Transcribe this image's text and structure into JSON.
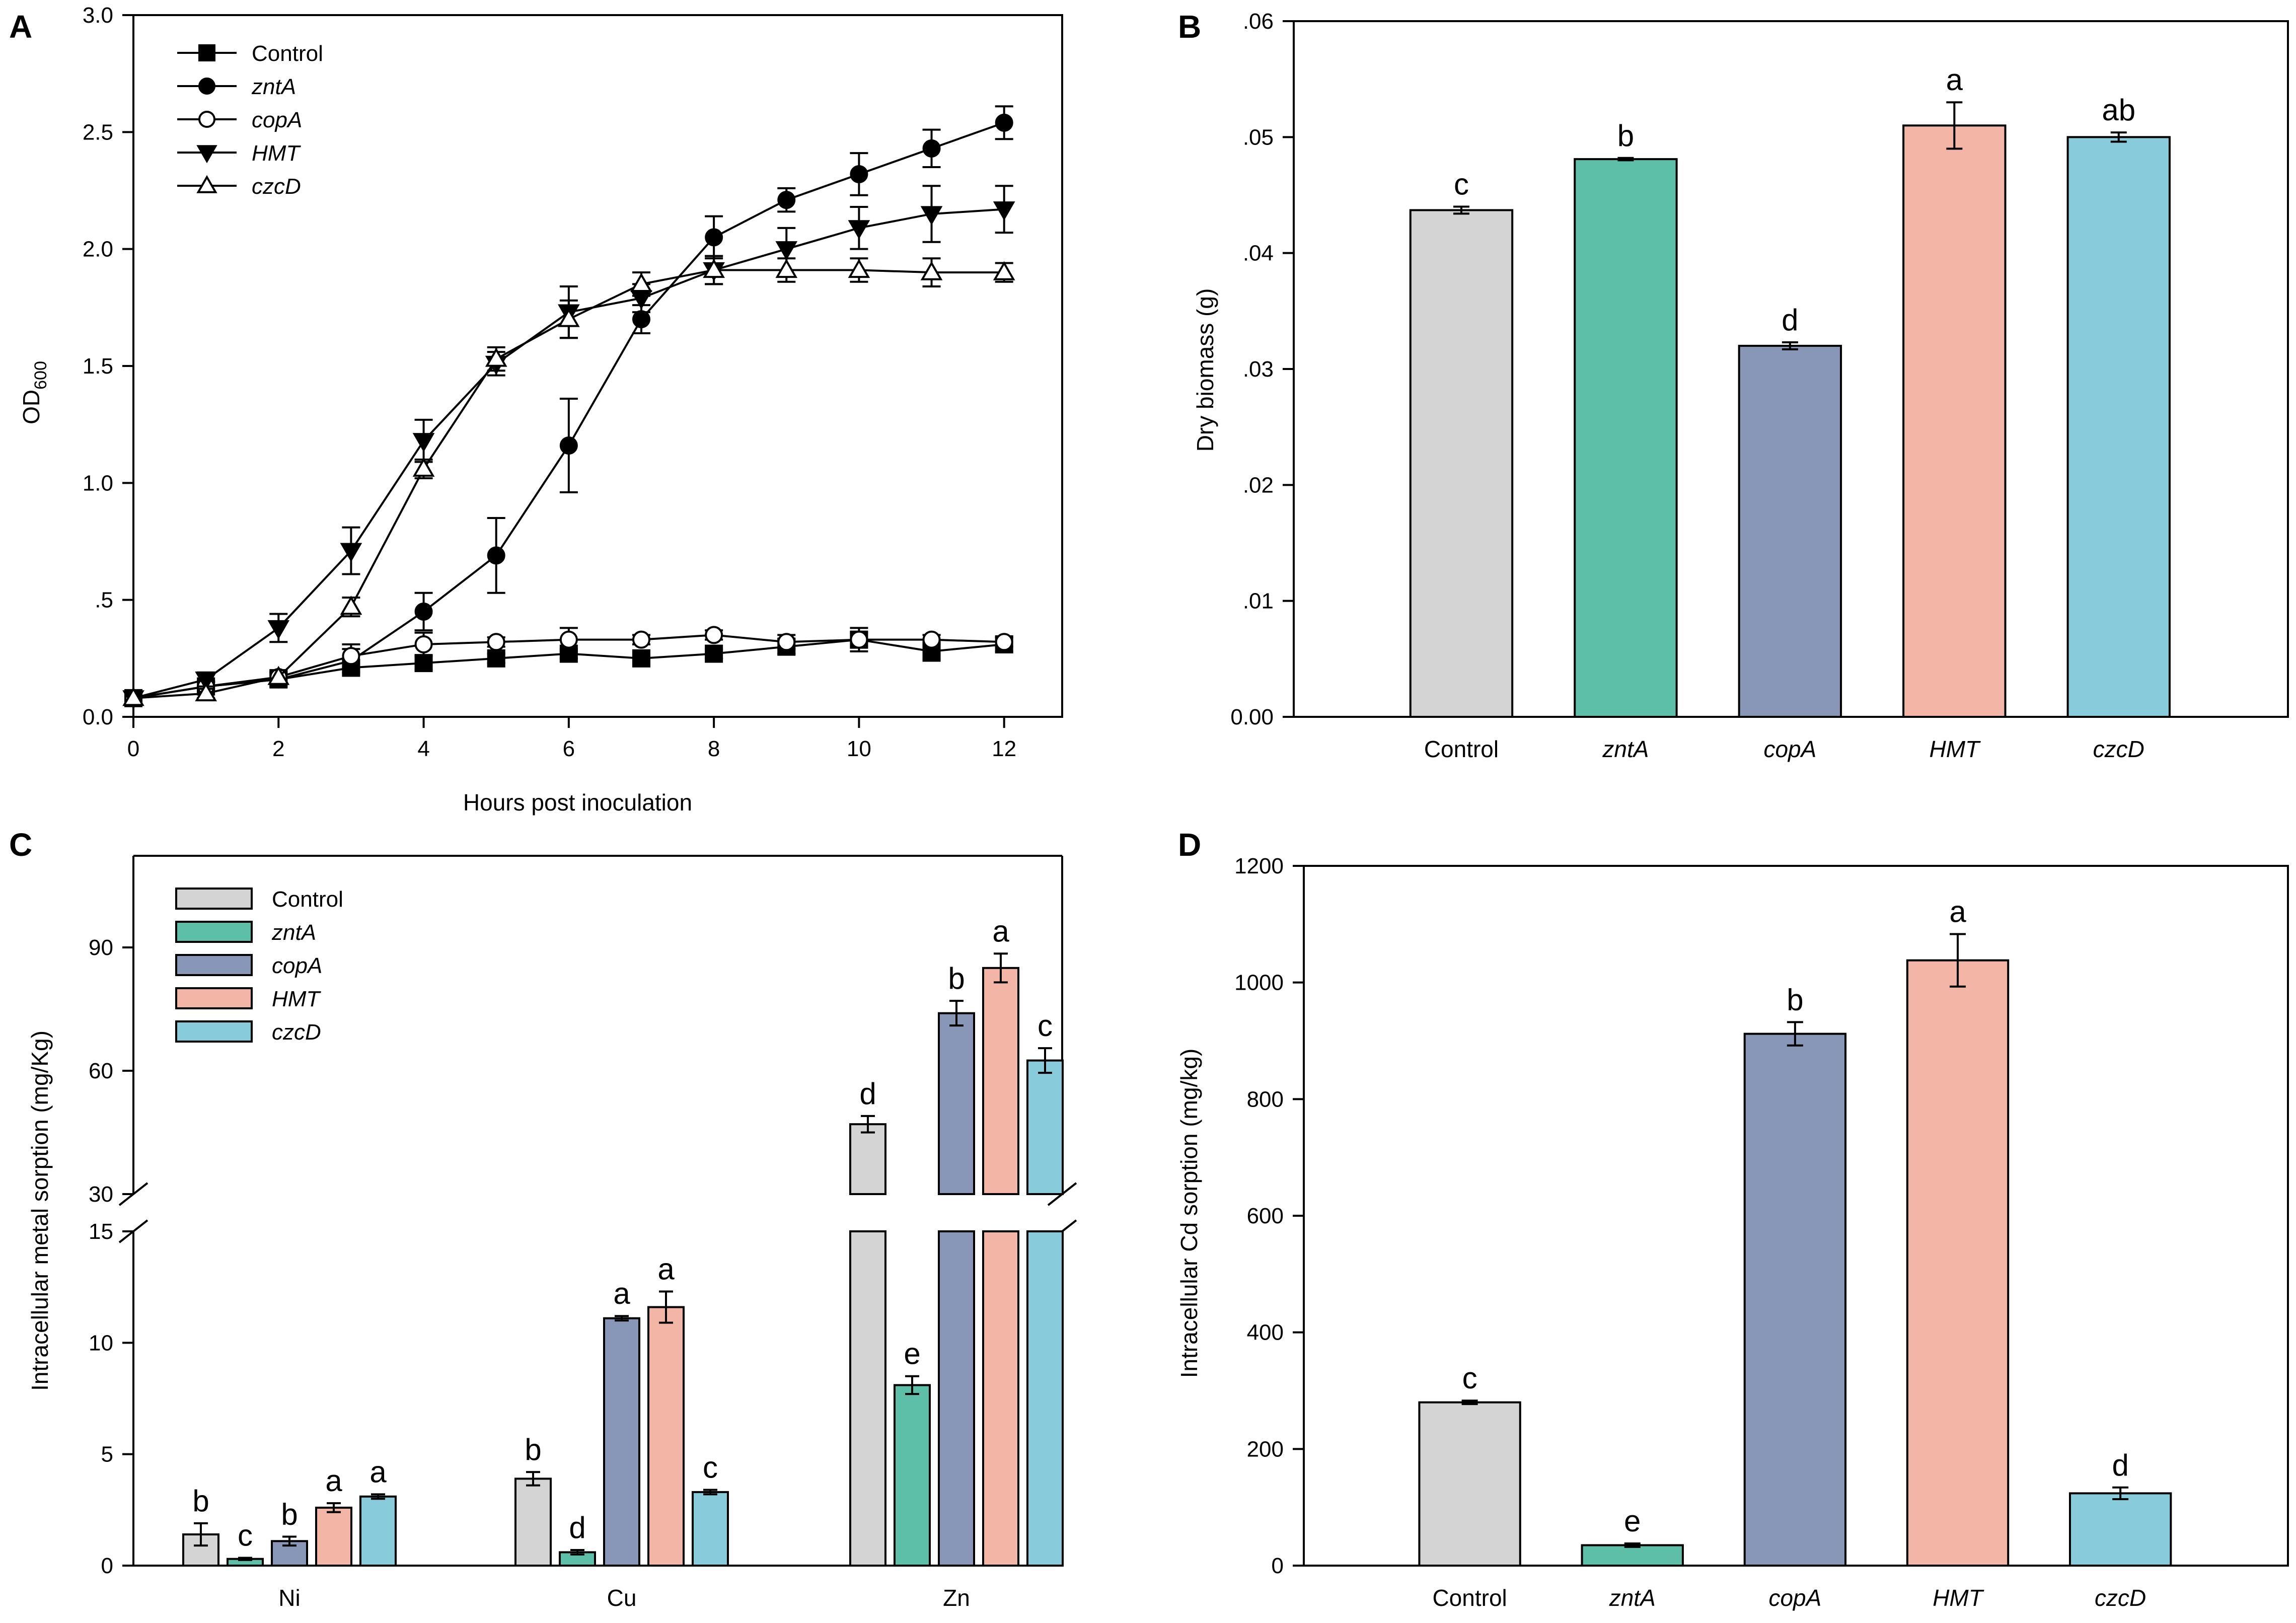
{
  "chart_data": [
    {
      "panel": "A",
      "type": "line",
      "xlabel": "Hours post inoculation",
      "ylabel": "OD",
      "ylabel_sub": "600",
      "xlim": [
        0,
        12.8
      ],
      "ylim": [
        0,
        3.0
      ],
      "xticks": [
        "0",
        "2",
        "4",
        "6",
        "8",
        "10",
        "12"
      ],
      "yticks": [
        "0.0",
        ".5",
        "1.0",
        "1.5",
        "2.0",
        "2.5",
        "3.0"
      ],
      "series": [
        {
          "name": "Control",
          "marker": "square-filled",
          "x": [
            0,
            1,
            2,
            3,
            4,
            5,
            6,
            7,
            8,
            9,
            10,
            11,
            12
          ],
          "y": [
            0.08,
            0.13,
            0.16,
            0.21,
            0.23,
            0.25,
            0.27,
            0.25,
            0.27,
            0.3,
            0.33,
            0.28,
            0.31
          ],
          "err": [
            0.02,
            0.02,
            0.02,
            0.02,
            0.03,
            0.02,
            0.02,
            0.02,
            0.02,
            0.03,
            0.05,
            0.04,
            0.03
          ]
        },
        {
          "name": "zntA",
          "marker": "circle-filled",
          "x": [
            0,
            1,
            2,
            3,
            4,
            5,
            6,
            7,
            8,
            9,
            10,
            11,
            12
          ],
          "y": [
            0.08,
            0.13,
            0.16,
            0.24,
            0.45,
            0.69,
            1.16,
            1.7,
            2.05,
            2.21,
            2.32,
            2.43,
            2.54
          ],
          "err": [
            0.02,
            0.02,
            0.03,
            0.05,
            0.08,
            0.16,
            0.2,
            0.06,
            0.09,
            0.05,
            0.09,
            0.08,
            0.07
          ]
        },
        {
          "name": "copA",
          "marker": "circle-open",
          "x": [
            0,
            1,
            2,
            3,
            4,
            5,
            6,
            7,
            8,
            9,
            10,
            11,
            12
          ],
          "y": [
            0.08,
            0.13,
            0.17,
            0.26,
            0.31,
            0.32,
            0.33,
            0.33,
            0.35,
            0.32,
            0.33,
            0.33,
            0.32
          ],
          "err": [
            0.02,
            0.02,
            0.02,
            0.05,
            0.05,
            0.02,
            0.05,
            0.02,
            0.02,
            0.03,
            0.03,
            0.02,
            0.02
          ]
        },
        {
          "name": "HMT",
          "marker": "triangle-down-filled",
          "x": [
            0,
            1,
            2,
            3,
            4,
            5,
            6,
            7,
            8,
            9,
            10,
            11,
            12
          ],
          "y": [
            0.08,
            0.16,
            0.38,
            0.71,
            1.18,
            1.51,
            1.73,
            1.79,
            1.91,
            2.0,
            2.09,
            2.15,
            2.17
          ],
          "err": [
            0.02,
            0.03,
            0.06,
            0.1,
            0.09,
            0.05,
            0.11,
            0.06,
            0.06,
            0.09,
            0.09,
            0.12,
            0.1
          ]
        },
        {
          "name": "czcD",
          "marker": "triangle-up-open",
          "x": [
            0,
            1,
            2,
            3,
            4,
            5,
            6,
            7,
            8,
            9,
            10,
            11,
            12
          ],
          "y": [
            0.08,
            0.1,
            0.17,
            0.47,
            1.06,
            1.53,
            1.7,
            1.85,
            1.91,
            1.91,
            1.91,
            1.9,
            1.9
          ],
          "err": [
            0.02,
            0.02,
            0.03,
            0.04,
            0.04,
            0.05,
            0.08,
            0.05,
            0.06,
            0.05,
            0.05,
            0.06,
            0.04
          ]
        }
      ]
    },
    {
      "panel": "B",
      "type": "bar",
      "ylabel": "Dry biomass (g)",
      "ylim": [
        0,
        0.06
      ],
      "yticks": [
        "0.00",
        ".01",
        ".02",
        ".03",
        ".04",
        ".05",
        ".06"
      ],
      "categories": [
        "Control",
        "zntA",
        "copA",
        "HMT",
        "czcD"
      ],
      "values": [
        0.0437,
        0.0481,
        0.032,
        0.051,
        0.05
      ],
      "err": [
        0.0003,
        0.0001,
        0.0003,
        0.002,
        0.0004
      ],
      "labels": [
        "c",
        "b",
        "d",
        "a",
        "ab"
      ]
    },
    {
      "panel": "C",
      "type": "bar",
      "ylabel": "Intracellular metal sorption (mg/Kg)",
      "axis_break": {
        "lower": [
          0,
          15
        ],
        "upper": [
          30,
          90
        ]
      },
      "yticks_lower": [
        "0",
        "5",
        "10",
        "15"
      ],
      "yticks_upper": [
        "30",
        "60",
        "90"
      ],
      "categories": [
        "Ni",
        "Cu",
        "Zn"
      ],
      "series": [
        {
          "name": "Control",
          "values": [
            1.4,
            3.9,
            47.0
          ],
          "err": [
            0.5,
            0.3,
            2.0
          ],
          "labels": [
            "b",
            "b",
            "d"
          ]
        },
        {
          "name": "zntA",
          "values": [
            0.3,
            0.6,
            8.1
          ],
          "err": [
            0.05,
            0.1,
            0.4
          ],
          "labels": [
            "c",
            "d",
            "e"
          ]
        },
        {
          "name": "copA",
          "values": [
            1.1,
            11.1,
            74.0
          ],
          "err": [
            0.2,
            0.1,
            3.0
          ],
          "labels": [
            "b",
            "a",
            "b"
          ]
        },
        {
          "name": "HMT",
          "values": [
            2.6,
            11.6,
            85.0
          ],
          "err": [
            0.2,
            0.7,
            3.5
          ],
          "labels": [
            "a",
            "a",
            "a"
          ]
        },
        {
          "name": "czcD",
          "values": [
            3.1,
            3.3,
            62.5
          ],
          "err": [
            0.1,
            0.1,
            3.0
          ],
          "labels": [
            "a",
            "c",
            "c"
          ]
        }
      ]
    },
    {
      "panel": "D",
      "type": "bar",
      "ylabel": "Intracellular Cd sorption (mg/kg)",
      "ylim": [
        0,
        1200
      ],
      "yticks": [
        "0",
        "200",
        "400",
        "600",
        "800",
        "1000",
        "1200"
      ],
      "categories": [
        "Control",
        "zntA",
        "copA",
        "HMT",
        "czcD"
      ],
      "values": [
        280,
        35,
        912,
        1038,
        124
      ],
      "err": [
        3,
        3,
        20,
        45,
        10
      ],
      "labels": [
        "c",
        "e",
        "b",
        "a",
        "d"
      ]
    }
  ],
  "legend": [
    "Control",
    "zntA",
    "copA",
    "HMT",
    "czcD"
  ],
  "colors": {
    "Control": "#d4d4d4",
    "zntA": "#5ebfa8",
    "copA": "#8896b7",
    "HMT": "#f2b5a6",
    "czcD": "#88cbdb",
    "line": "#111111"
  }
}
